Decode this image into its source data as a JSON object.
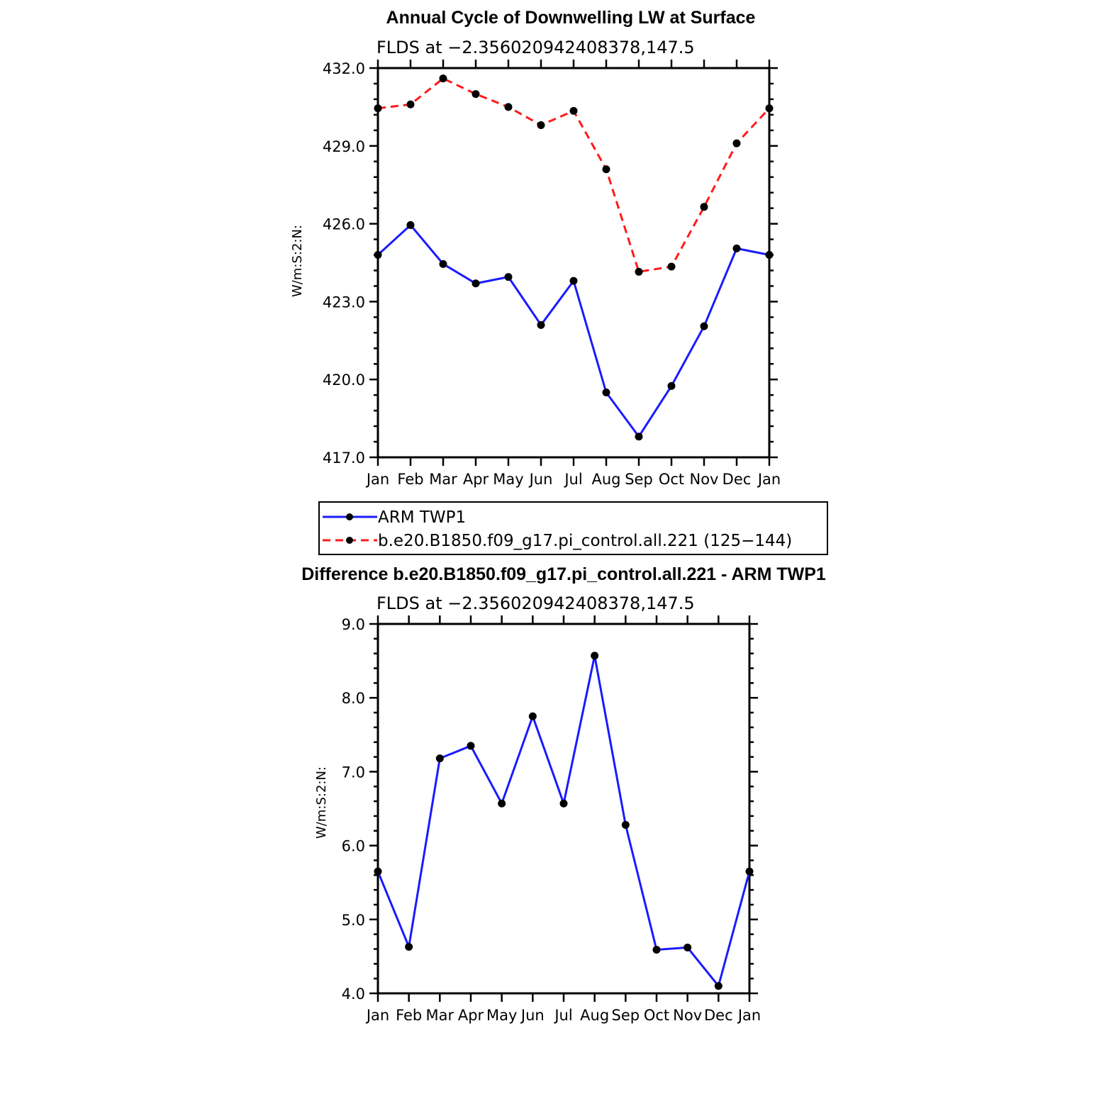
{
  "chart_data": [
    {
      "type": "line",
      "title": "Annual Cycle of Downwelling LW at Surface",
      "subtitle": "FLDS at −2.356020942408378,147.5",
      "ylabel": "W/m:S:2:N:",
      "xlabel": "",
      "categories": [
        "Jan",
        "Feb",
        "Mar",
        "Apr",
        "May",
        "Jun",
        "Jul",
        "Aug",
        "Sep",
        "Oct",
        "Nov",
        "Dec",
        "Jan"
      ],
      "ylim": [
        417.0,
        432.0
      ],
      "yticks": [
        "417.0",
        "420.0",
        "423.0",
        "426.0",
        "429.0",
        "432.0"
      ],
      "ytick_values": [
        417,
        420,
        423,
        426,
        429,
        432
      ],
      "series": [
        {
          "name": "ARM TWP1",
          "color": "#1a1aff",
          "dash": "solid",
          "values": [
            424.8,
            425.95,
            424.45,
            423.7,
            423.95,
            422.1,
            423.8,
            419.5,
            417.8,
            419.75,
            422.05,
            425.05,
            424.8
          ]
        },
        {
          "name": "b.e20.B1850.f09_g17.pi_control.all.221 (125−144)",
          "color": "#ff1a1a",
          "dash": "dashed",
          "values": [
            430.45,
            430.6,
            431.6,
            431.0,
            430.5,
            429.8,
            430.35,
            428.1,
            424.15,
            424.35,
            426.65,
            429.1,
            430.45
          ]
        }
      ],
      "legend": [
        "ARM TWP1",
        "b.e20.B1850.f09_g17.pi_control.all.221 (125−144)"
      ],
      "legend_position": "below"
    },
    {
      "type": "line",
      "title": "Difference b.e20.B1850.f09_g17.pi_control.all.221 - ARM TWP1",
      "subtitle": "FLDS at −2.356020942408378,147.5",
      "ylabel": "W/m:S:2:N:",
      "xlabel": "",
      "categories": [
        "Jan",
        "Feb",
        "Mar",
        "Apr",
        "May",
        "Jun",
        "Jul",
        "Aug",
        "Sep",
        "Oct",
        "Nov",
        "Dec",
        "Jan"
      ],
      "ylim": [
        4.0,
        9.0
      ],
      "yticks": [
        "4.0",
        "5.0",
        "6.0",
        "7.0",
        "8.0",
        "9.0"
      ],
      "ytick_values": [
        4,
        5,
        6,
        7,
        8,
        9
      ],
      "series": [
        {
          "name": "Difference",
          "color": "#1a1aff",
          "dash": "solid",
          "values": [
            5.65,
            4.63,
            7.18,
            7.35,
            6.57,
            7.75,
            6.57,
            8.57,
            6.28,
            4.59,
            4.62,
            4.1,
            5.65
          ]
        }
      ]
    }
  ]
}
